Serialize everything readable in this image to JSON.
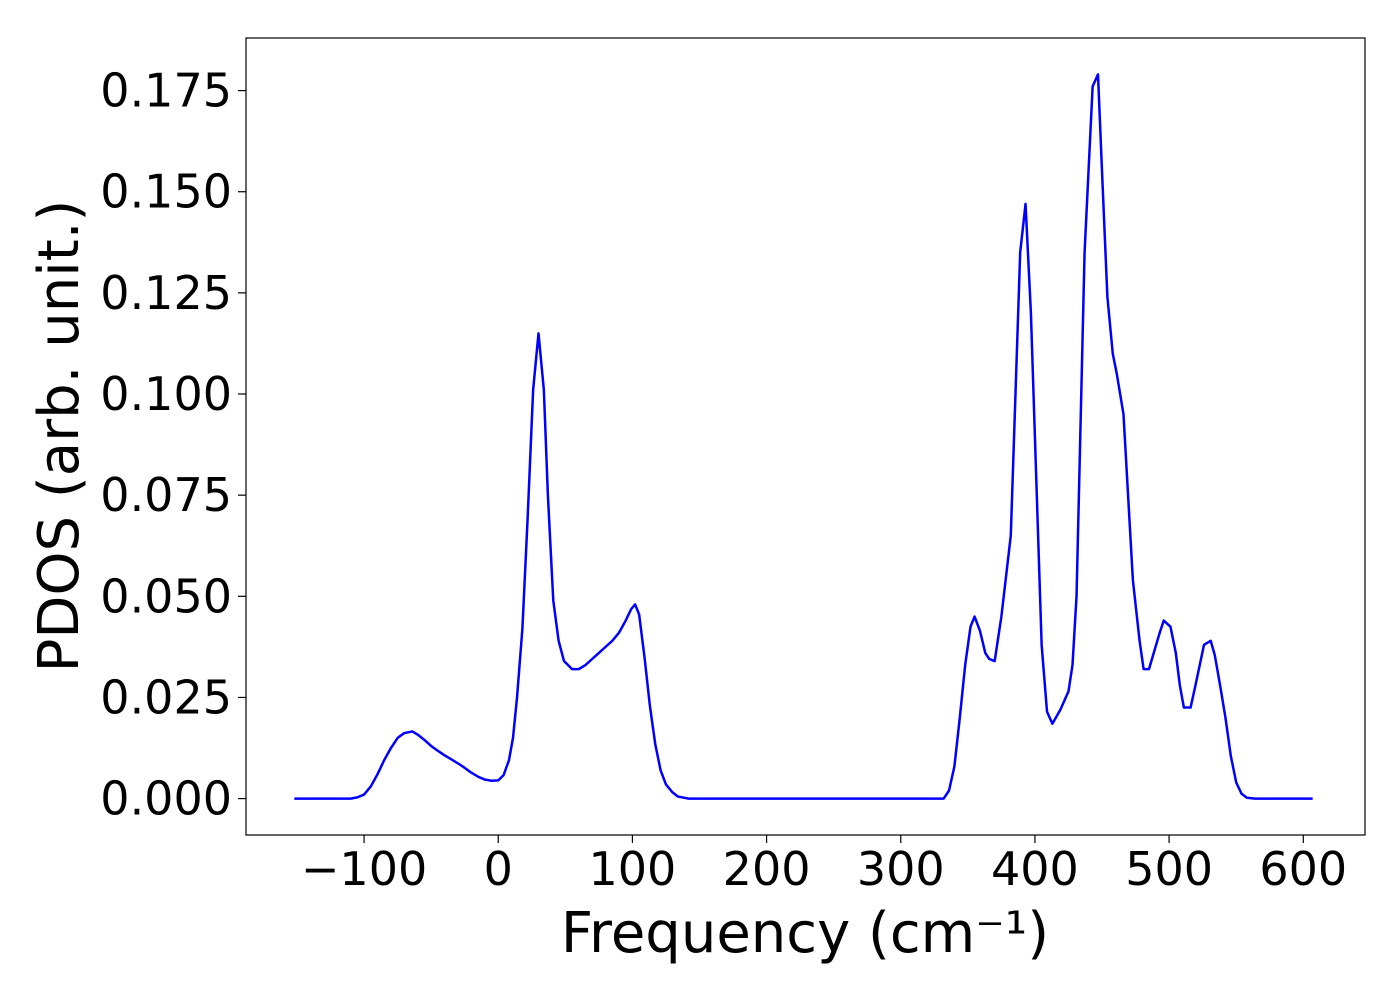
{
  "chart_data": {
    "type": "line",
    "x_label": "Frequency (cm⁻¹)",
    "y_label": "PDOS (arb. unit.)",
    "xlim": [
      -188,
      646
    ],
    "ylim": [
      -0.009,
      0.188
    ],
    "xticks": [
      {
        "value": -100,
        "label": "−100"
      },
      0,
      100,
      200,
      300,
      400,
      500,
      600
    ],
    "yticks": [
      {
        "value": 0,
        "label": "0.000"
      },
      {
        "value": 0.025,
        "label": "0.025"
      },
      {
        "value": 0.05,
        "label": "0.050"
      },
      {
        "value": 0.075,
        "label": "0.075"
      },
      {
        "value": 0.1,
        "label": "0.100"
      },
      {
        "value": 0.125,
        "label": "0.125"
      },
      {
        "value": 0.15,
        "label": "0.150"
      },
      {
        "value": 0.175,
        "label": "0.175"
      }
    ],
    "grid": false,
    "series": [
      {
        "color": "#0000ff",
        "x": [
          -152,
          -110,
          -105,
          -100,
          -95,
          -90,
          -85,
          -80,
          -75,
          -70,
          -64,
          -60,
          -55,
          -50,
          -45,
          -40,
          -35,
          -30,
          -25,
          -20,
          -15,
          -10,
          -5,
          0,
          4,
          8,
          11,
          14,
          18,
          22,
          26,
          30,
          34,
          37,
          41,
          45,
          49,
          55,
          60,
          65,
          70,
          75,
          80,
          85,
          90,
          95,
          99,
          102,
          105,
          109,
          113,
          117,
          121,
          125,
          130,
          134,
          142,
          332,
          336,
          340,
          344,
          348,
          352,
          355,
          359,
          363,
          366,
          370,
          375,
          382,
          389,
          393,
          397,
          405,
          409,
          413,
          419,
          425,
          428,
          431,
          437,
          443,
          447,
          450,
          454,
          458,
          461,
          466,
          473,
          478,
          481,
          485,
          493,
          496,
          501,
          505,
          508,
          511,
          516,
          519,
          526,
          531,
          534,
          538,
          542,
          546,
          550,
          554,
          558,
          564,
          607
        ],
        "values": [
          0,
          0,
          0.0003,
          0.001,
          0.003,
          0.006,
          0.0095,
          0.0125,
          0.015,
          0.0162,
          0.0166,
          0.0158,
          0.0145,
          0.013,
          0.0118,
          0.0107,
          0.0097,
          0.0087,
          0.0076,
          0.0064,
          0.0054,
          0.0047,
          0.0044,
          0.0045,
          0.0058,
          0.0095,
          0.015,
          0.025,
          0.042,
          0.07,
          0.101,
          0.115,
          0.101,
          0.075,
          0.049,
          0.039,
          0.034,
          0.032,
          0.032,
          0.033,
          0.0345,
          0.036,
          0.0375,
          0.039,
          0.041,
          0.044,
          0.0468,
          0.048,
          0.0455,
          0.035,
          0.023,
          0.0135,
          0.007,
          0.0035,
          0.0015,
          0.0005,
          0,
          0,
          0.002,
          0.008,
          0.02,
          0.033,
          0.0425,
          0.045,
          0.0415,
          0.036,
          0.0345,
          0.034,
          0.045,
          0.065,
          0.135,
          0.147,
          0.12,
          0.038,
          0.0215,
          0.0185,
          0.022,
          0.0265,
          0.033,
          0.05,
          0.135,
          0.176,
          0.179,
          0.155,
          0.124,
          0.11,
          0.105,
          0.095,
          0.054,
          0.039,
          0.032,
          0.032,
          0.041,
          0.044,
          0.0425,
          0.036,
          0.028,
          0.0225,
          0.0225,
          0.027,
          0.038,
          0.039,
          0.0355,
          0.028,
          0.02,
          0.0105,
          0.004,
          0.0012,
          0.0002,
          0,
          0
        ]
      }
    ]
  }
}
